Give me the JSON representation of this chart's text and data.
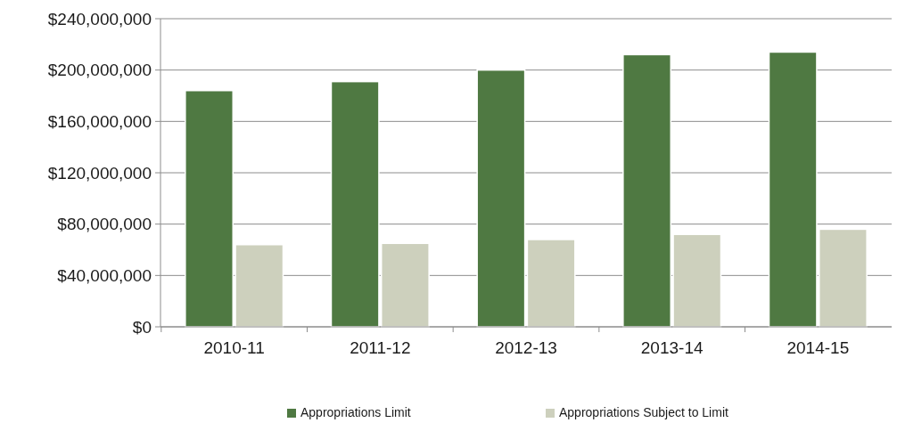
{
  "chart_data": {
    "type": "bar",
    "categories": [
      "2010-11",
      "2011-12",
      "2012-13",
      "2013-14",
      "2014-15"
    ],
    "series": [
      {
        "name": "Appropriations Limit",
        "color": "#4f7942",
        "values": [
          184000000,
          191000000,
          200000000,
          212000000,
          214000000
        ]
      },
      {
        "name": "Appropriations Subject to Limit",
        "color": "#cdd0bd",
        "values": [
          64000000,
          65000000,
          68000000,
          72000000,
          76000000
        ]
      }
    ],
    "ylim": [
      0,
      240000000
    ],
    "yticks": [
      {
        "value": 0,
        "label": "$0"
      },
      {
        "value": 40000000,
        "label": "$40,000,000"
      },
      {
        "value": 80000000,
        "label": "$80,000,000"
      },
      {
        "value": 120000000,
        "label": "$120,000,000"
      },
      {
        "value": 160000000,
        "label": "$160,000,000"
      },
      {
        "value": 200000000,
        "label": "$200,000,000"
      },
      {
        "value": 240000000,
        "label": "$240,000,000"
      }
    ],
    "grid": "y",
    "legend": "bottom"
  }
}
